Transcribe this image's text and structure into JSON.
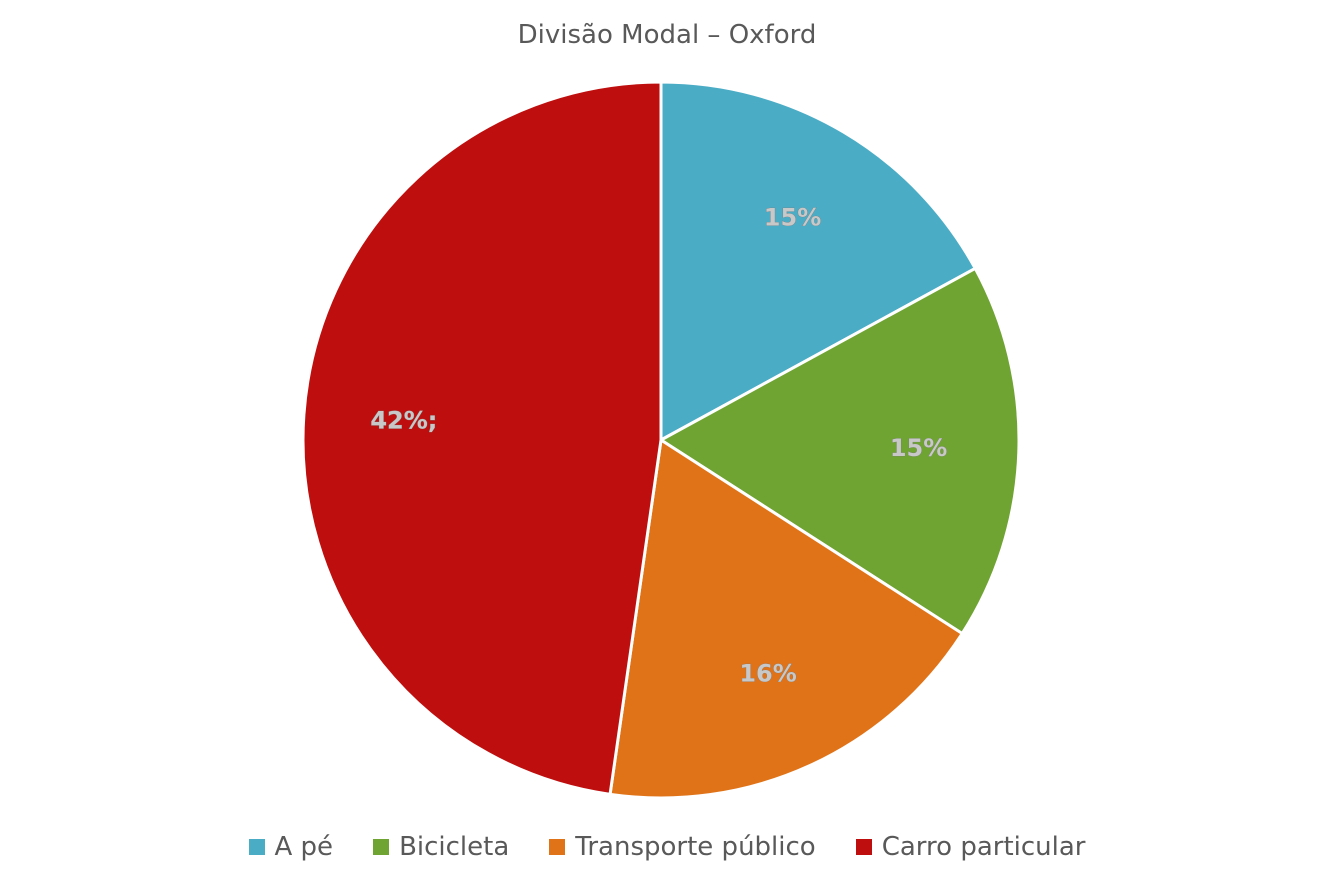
{
  "chart_data": {
    "type": "pie",
    "title": "Divisão Modal – Oxford",
    "categories": [
      "A pé",
      "Bicicleta",
      "Transporte público",
      "Carro particular"
    ],
    "values": [
      15,
      15,
      16,
      42
    ],
    "data_labels": [
      "15%",
      "15%",
      "16%",
      "42%;"
    ],
    "colors": [
      "#4BACC6",
      "#6FA433",
      "#E07318",
      "#BE0E0E"
    ],
    "start_angle_deg": 0,
    "direction": "clockwise",
    "legend": "bottom"
  }
}
